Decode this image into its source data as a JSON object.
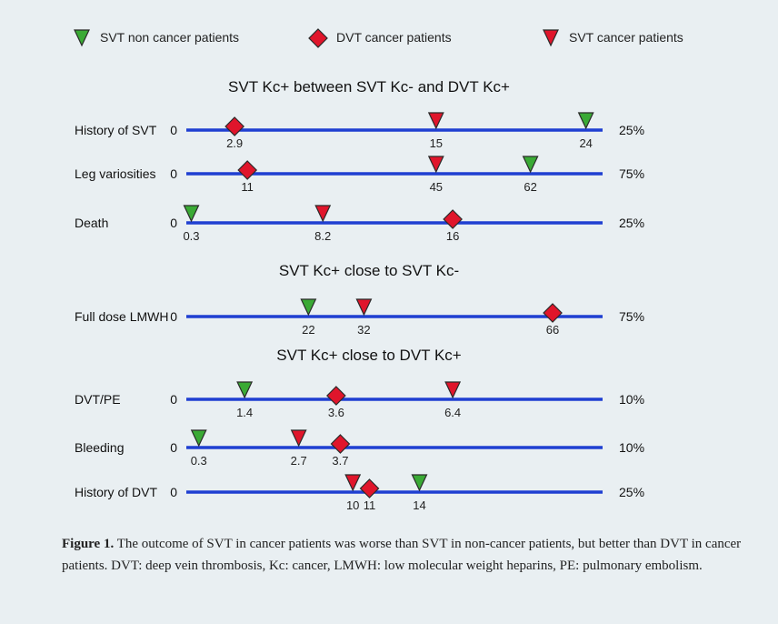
{
  "chart_data": {
    "type": "scatter",
    "legend": {
      "placement": "top",
      "entries": [
        {
          "name": "SVT non cancer patients",
          "marker": "triangle",
          "color": "#3aaa35"
        },
        {
          "name": "DVT cancer patients",
          "marker": "diamond",
          "color": "#e0152b"
        },
        {
          "name": "SVT cancer patients",
          "marker": "triangle",
          "color": "#e0152b"
        }
      ]
    },
    "colors": {
      "axis": "#1f3fd1",
      "green": "#3aaa35",
      "red": "#e0152b"
    },
    "groups": [
      {
        "title": "SVT Kc+ between SVT Kc- and DVT Kc+",
        "rows": [
          {
            "label": "History of SVT",
            "axis_start": "0",
            "axis_end": "25%",
            "xmax": 25,
            "points": [
              {
                "series": "DVT cancer patients",
                "value": 2.9,
                "label": "2.9"
              },
              {
                "series": "SVT cancer patients",
                "value": 15,
                "label": "15"
              },
              {
                "series": "SVT non cancer patients",
                "value": 24,
                "label": "24"
              }
            ]
          },
          {
            "label": "Leg variosities",
            "axis_start": "0",
            "axis_end": "75%",
            "xmax": 75,
            "points": [
              {
                "series": "DVT cancer patients",
                "value": 11,
                "label": "11"
              },
              {
                "series": "SVT cancer patients",
                "value": 45,
                "label": "45"
              },
              {
                "series": "SVT non cancer patients",
                "value": 62,
                "label": "62"
              }
            ]
          },
          {
            "label": "Death",
            "axis_start": "0",
            "axis_end": "25%",
            "xmax": 25,
            "points": [
              {
                "series": "SVT non cancer patients",
                "value": 0.3,
                "label": "0.3"
              },
              {
                "series": "SVT cancer patients",
                "value": 8.2,
                "label": "8.2"
              },
              {
                "series": "DVT cancer patients",
                "value": 16,
                "label": "16"
              }
            ]
          }
        ]
      },
      {
        "title": "SVT Kc+ close to SVT Kc-",
        "rows": [
          {
            "label": "Full dose LMWH",
            "axis_start": "0",
            "axis_end": "75%",
            "xmax": 75,
            "points": [
              {
                "series": "SVT non cancer patients",
                "value": 22,
                "label": "22"
              },
              {
                "series": "SVT cancer patients",
                "value": 32,
                "label": "32"
              },
              {
                "series": "DVT cancer patients",
                "value": 66,
                "label": "66"
              }
            ]
          }
        ]
      },
      {
        "title": "SVT Kc+ close to DVT Kc+",
        "rows": [
          {
            "label": "DVT/PE",
            "axis_start": "0",
            "axis_end": "10%",
            "xmax": 10,
            "points": [
              {
                "series": "SVT non cancer patients",
                "value": 1.4,
                "label": "1.4"
              },
              {
                "series": "DVT cancer patients",
                "value": 3.6,
                "label": "3.6"
              },
              {
                "series": "SVT cancer patients",
                "value": 6.4,
                "label": "6.4"
              }
            ]
          },
          {
            "label": "Bleeding",
            "axis_start": "0",
            "axis_end": "10%",
            "xmax": 10,
            "points": [
              {
                "series": "SVT non cancer patients",
                "value": 0.3,
                "label": "0.3"
              },
              {
                "series": "SVT cancer patients",
                "value": 2.7,
                "label": "2.7"
              },
              {
                "series": "DVT cancer patients",
                "value": 3.7,
                "label": "3.7"
              }
            ]
          },
          {
            "label": "History of DVT",
            "axis_start": "0",
            "axis_end": "25%",
            "xmax": 25,
            "points": [
              {
                "series": "SVT cancer patients",
                "value": 10,
                "label": "10"
              },
              {
                "series": "DVT cancer patients",
                "value": 11,
                "label": "11"
              },
              {
                "series": "SVT non cancer patients",
                "value": 14,
                "label": "14"
              }
            ]
          }
        ]
      }
    ]
  },
  "caption": {
    "lead": "Figure 1.",
    "text": "The outcome of SVT in cancer patients was worse than SVT in non-cancer patients, but better than DVT in cancer patients. DVT: deep vein thrombosis, Kc: cancer, LMWH: low molecular weight heparins, PE: pulmonary embolism."
  }
}
